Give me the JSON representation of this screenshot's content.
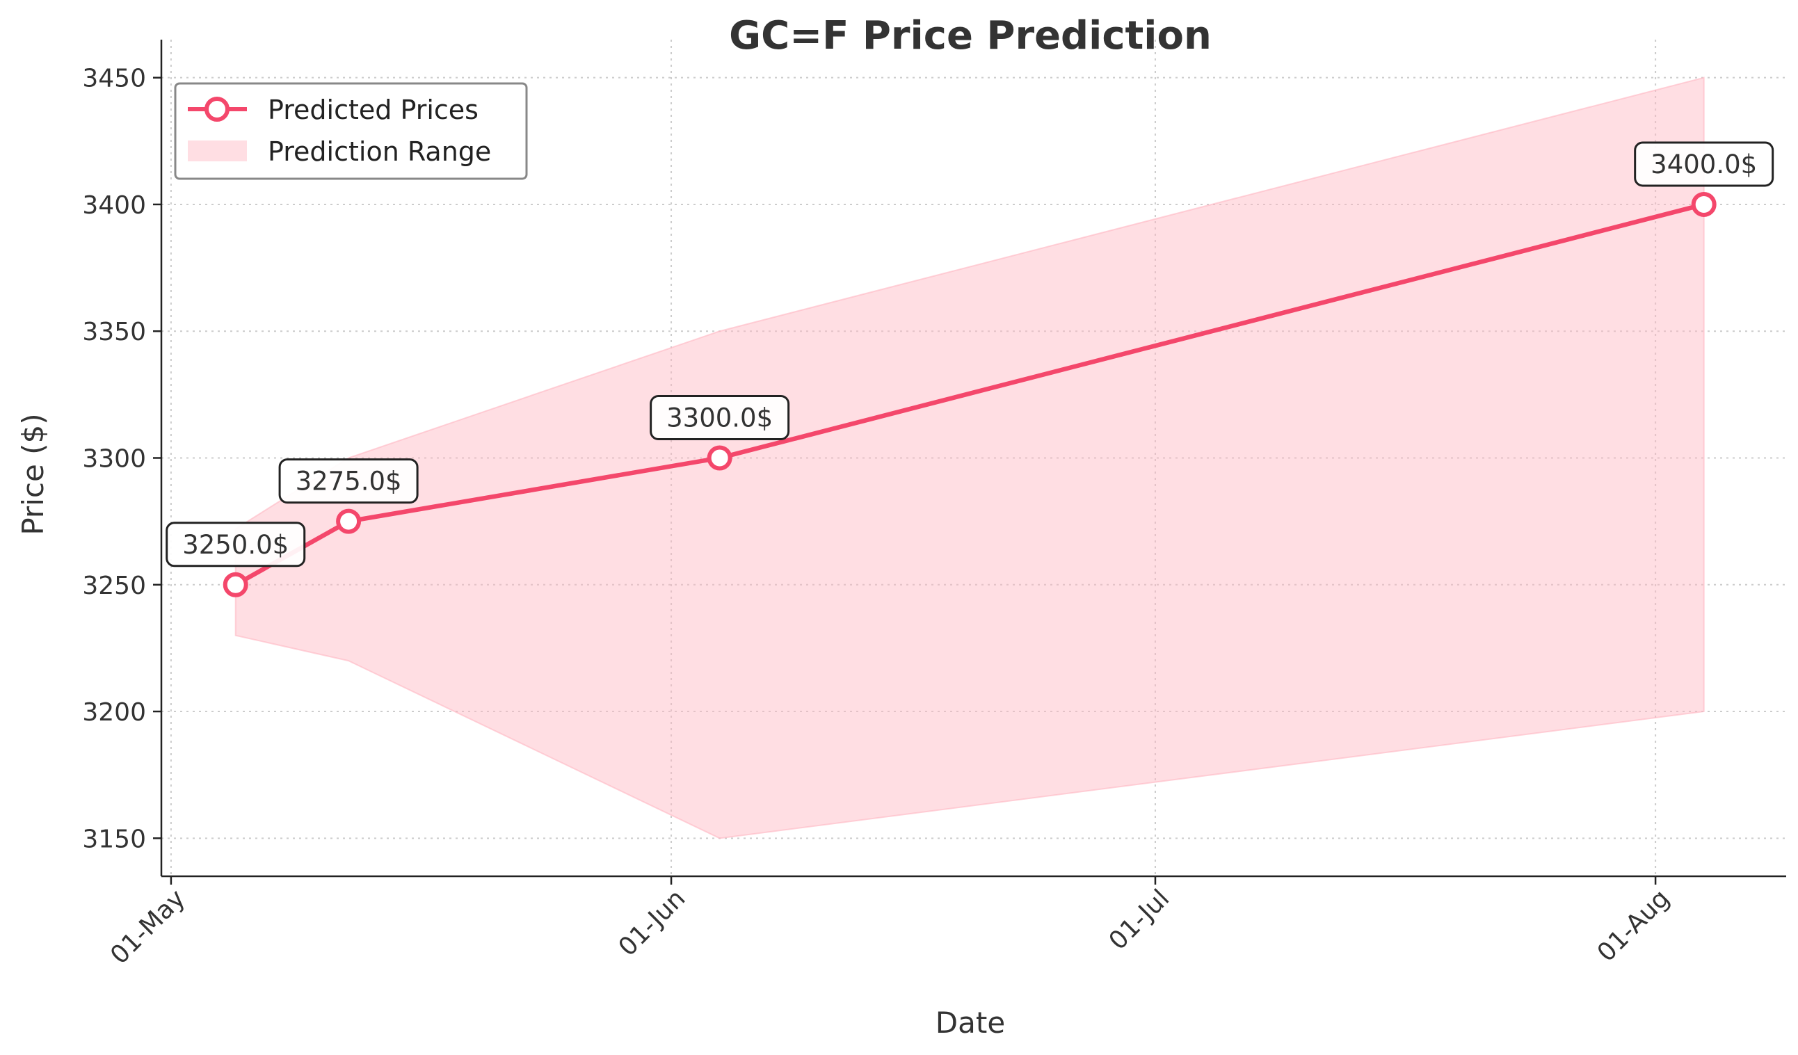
{
  "chart_data": {
    "type": "line",
    "title": "GC=F Price Prediction",
    "xlabel": "Date",
    "ylabel": "Price ($)",
    "x_ticks": [
      {
        "label": "01-May",
        "day": 0
      },
      {
        "label": "01-Jun",
        "day": 31
      },
      {
        "label": "01-Jul",
        "day": 61
      },
      {
        "label": "01-Aug",
        "day": 92
      }
    ],
    "xlim": [
      -0.6,
      100.1
    ],
    "ylim": [
      3135,
      3465
    ],
    "y_ticks": [
      3150,
      3200,
      3250,
      3300,
      3350,
      3400,
      3450
    ],
    "grid": true,
    "legend_position": "top-left",
    "series": [
      {
        "name": "Predicted Prices",
        "color": "#f4476b",
        "points": [
          {
            "day": 4,
            "value": 3250.0,
            "label": "3250.0$"
          },
          {
            "day": 11,
            "value": 3275.0,
            "label": "3275.0$"
          },
          {
            "day": 34,
            "value": 3300.0,
            "label": "3300.0$"
          },
          {
            "day": 95,
            "value": 3400.0,
            "label": "3400.0$"
          }
        ]
      }
    ],
    "range": {
      "name": "Prediction Range",
      "color": "#ffb6c1",
      "upper": [
        {
          "day": 4,
          "value": 3272
        },
        {
          "day": 11,
          "value": 3300
        },
        {
          "day": 34,
          "value": 3350
        },
        {
          "day": 95,
          "value": 3450
        }
      ],
      "lower": [
        {
          "day": 4,
          "value": 3230
        },
        {
          "day": 11,
          "value": 3220
        },
        {
          "day": 34,
          "value": 3150
        },
        {
          "day": 95,
          "value": 3200
        }
      ]
    }
  }
}
